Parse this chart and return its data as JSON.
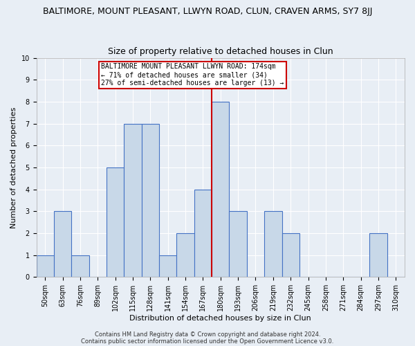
{
  "title": "BALTIMORE, MOUNT PLEASANT, LLWYN ROAD, CLUN, CRAVEN ARMS, SY7 8JJ",
  "subtitle": "Size of property relative to detached houses in Clun",
  "xlabel": "Distribution of detached houses by size in Clun",
  "ylabel": "Number of detached properties",
  "footer1": "Contains HM Land Registry data © Crown copyright and database right 2024.",
  "footer2": "Contains public sector information licensed under the Open Government Licence v3.0.",
  "bin_labels": [
    "50sqm",
    "63sqm",
    "76sqm",
    "89sqm",
    "102sqm",
    "115sqm",
    "128sqm",
    "141sqm",
    "154sqm",
    "167sqm",
    "180sqm",
    "193sqm",
    "206sqm",
    "219sqm",
    "232sqm",
    "245sqm",
    "258sqm",
    "271sqm",
    "284sqm",
    "297sqm",
    "310sqm"
  ],
  "bar_values": [
    1,
    3,
    1,
    0,
    5,
    7,
    7,
    1,
    2,
    4,
    8,
    3,
    0,
    3,
    2,
    0,
    0,
    0,
    0,
    2,
    0
  ],
  "bar_color": "#c8d8e8",
  "bar_edge_color": "#4472c4",
  "annotation_text": "BALTIMORE MOUNT PLEASANT LLWYN ROAD: 174sqm\n← 71% of detached houses are smaller (34)\n27% of semi-detached houses are larger (13) →",
  "annotation_box_color": "#ffffff",
  "annotation_box_edge_color": "#cc0000",
  "ref_line_color": "#cc0000",
  "ylim": [
    0,
    10
  ],
  "bg_color": "#e8eef5",
  "grid_color": "#ffffff",
  "title_fontsize": 9,
  "subtitle_fontsize": 9,
  "axis_label_fontsize": 8,
  "tick_fontsize": 7,
  "annotation_fontsize": 7,
  "footer_fontsize": 6
}
